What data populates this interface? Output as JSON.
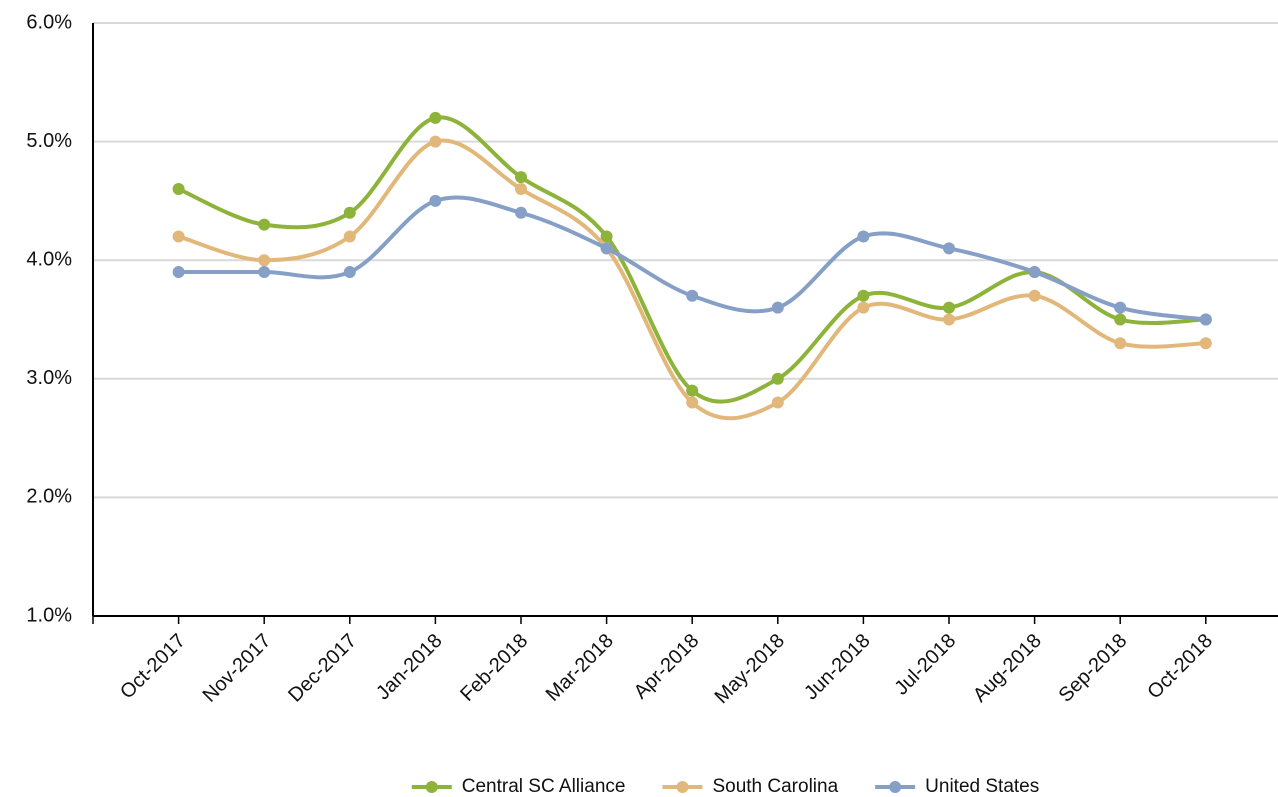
{
  "chart_data": {
    "type": "line",
    "categories": [
      "Oct-2017",
      "Nov-2017",
      "Dec-2017",
      "Jan-2018",
      "Feb-2018",
      "Mar-2018",
      "Apr-2018",
      "May-2018",
      "Jun-2018",
      "Jul-2018",
      "Aug-2018",
      "Sep-2018",
      "Oct-2018"
    ],
    "series": [
      {
        "name": "Central SC Alliance",
        "color": "#8db33a",
        "values": [
          4.6,
          4.3,
          4.4,
          5.2,
          4.7,
          4.2,
          2.9,
          3.0,
          3.7,
          3.6,
          3.9,
          3.5,
          3.5
        ]
      },
      {
        "name": "South Carolina",
        "color": "#e2b87a",
        "values": [
          4.2,
          4.0,
          4.2,
          5.0,
          4.6,
          4.1,
          2.8,
          2.8,
          3.6,
          3.5,
          3.7,
          3.3,
          3.3
        ]
      },
      {
        "name": "United States",
        "color": "#859fc6",
        "values": [
          3.9,
          3.9,
          3.9,
          4.5,
          4.4,
          4.1,
          3.7,
          3.6,
          4.2,
          4.1,
          3.9,
          3.6,
          3.5
        ]
      }
    ],
    "ylim": [
      1,
      6
    ],
    "yticks": [
      {
        "value": 1,
        "label": "1.0%"
      },
      {
        "value": 2,
        "label": "2.0%"
      },
      {
        "value": 3,
        "label": "3.0%"
      },
      {
        "value": 4,
        "label": "4.0%"
      },
      {
        "value": 5,
        "label": "5.0%"
      },
      {
        "value": 6,
        "label": "6.0%"
      }
    ],
    "grid": true,
    "smooth": true,
    "legend": "bottom"
  }
}
